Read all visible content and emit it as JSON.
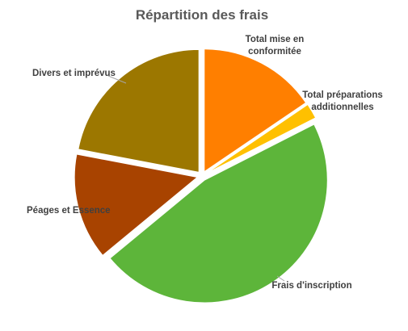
{
  "chart_data": {
    "type": "pie",
    "title": "Répartition des frais",
    "slices": [
      {
        "label_lines": [
          "Total mise en",
          "conformitée"
        ],
        "value": 15.5,
        "color": "#ff7f00"
      },
      {
        "label_lines": [
          "Total préparations",
          "additionnelles"
        ],
        "value": 2.0,
        "color": "#ffc000"
      },
      {
        "label_lines": [
          "Frais d'inscription"
        ],
        "value": 46.5,
        "color": "#5db53a"
      },
      {
        "label_lines": [
          "Péages et Essence"
        ],
        "value": 14.0,
        "color": "#a84300"
      },
      {
        "label_lines": [
          "Divers et imprévus"
        ],
        "value": 22.0,
        "color": "#9c7700"
      }
    ],
    "start_angle_deg": 0,
    "direction": "clockwise",
    "exploded": true,
    "legend": "none",
    "data_labels": "category name outside with leader lines"
  }
}
